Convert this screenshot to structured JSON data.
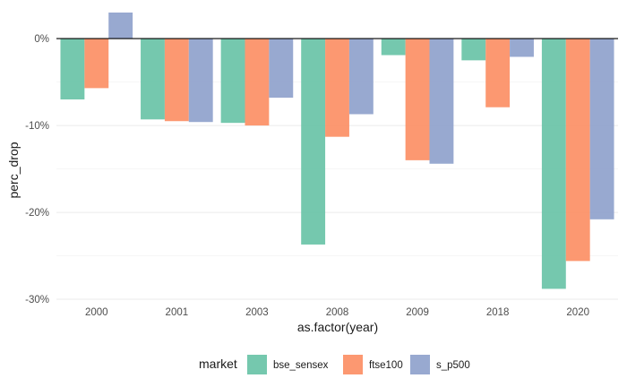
{
  "chart_data": {
    "type": "bar",
    "xlabel": "as.factor(year)",
    "ylabel": "perc_drop",
    "categories": [
      "2000",
      "2001",
      "2003",
      "2008",
      "2009",
      "2018",
      "2020"
    ],
    "series": [
      {
        "name": "bse_sensex",
        "color": "#66c2a5",
        "values": [
          -7.0,
          -9.3,
          -9.7,
          -23.7,
          -1.9,
          -2.5,
          -28.8
        ]
      },
      {
        "name": "ftse100",
        "color": "#fc8d62",
        "values": [
          -5.7,
          -9.5,
          -10.0,
          -11.3,
          -14.0,
          -7.9,
          -25.6
        ]
      },
      {
        "name": "s_p500",
        "color": "#8da0cb",
        "values": [
          3.0,
          -9.6,
          -6.8,
          -8.7,
          -14.4,
          -2.1,
          -20.8
        ]
      }
    ],
    "ylim": [
      -30.2,
      3.0
    ],
    "yticks": [
      0,
      -10,
      -20,
      -30
    ],
    "ytick_labels": [
      "0%",
      "-10%",
      "-20%",
      "-30%"
    ],
    "grid": true,
    "legend": {
      "title": "market",
      "position": "bottom"
    }
  }
}
